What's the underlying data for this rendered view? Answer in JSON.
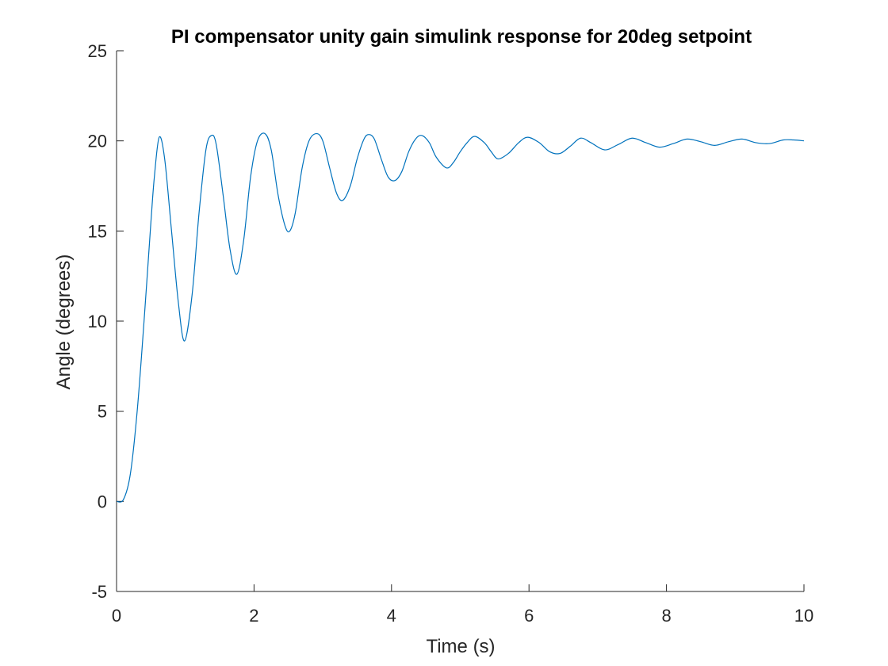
{
  "chart_data": {
    "type": "line",
    "title": "PI compensator unity gain simulink response for 20deg setpoint",
    "xlabel": "Time (s)",
    "ylabel": "Angle (degrees)",
    "xlim": [
      0,
      10
    ],
    "ylim": [
      -5,
      25
    ],
    "xticks": [
      0,
      2,
      4,
      6,
      8,
      10
    ],
    "yticks": [
      -5,
      0,
      5,
      10,
      15,
      20,
      25
    ],
    "xtick_labels": [
      "0",
      "2",
      "4",
      "6",
      "8",
      "10"
    ],
    "ytick_labels": [
      "-5",
      "0",
      "5",
      "10",
      "15",
      "20",
      "25"
    ],
    "grid": false,
    "legend": "none",
    "line_color": "#0072BD",
    "axis_color": "#262626",
    "series": [
      {
        "x": [
          0,
          0.1,
          0.2,
          0.3,
          0.4,
          0.5,
          0.55,
          0.62,
          0.7,
          0.8,
          0.9,
          0.99,
          1.1,
          1.2,
          1.3,
          1.38,
          1.45,
          1.55,
          1.65,
          1.75,
          1.85,
          1.95,
          2.05,
          2.16,
          2.25,
          2.35,
          2.45,
          2.52,
          2.6,
          2.7,
          2.8,
          2.91,
          3.0,
          3.1,
          3.2,
          3.29,
          3.4,
          3.5,
          3.6,
          3.67,
          3.75,
          3.85,
          3.95,
          4.05,
          4.15,
          4.25,
          4.35,
          4.44,
          4.55,
          4.65,
          4.8,
          4.9,
          5.0,
          5.1,
          5.21,
          5.35,
          5.45,
          5.55,
          5.7,
          5.85,
          5.98,
          6.15,
          6.3,
          6.45,
          6.6,
          6.75,
          6.9,
          7.1,
          7.3,
          7.5,
          7.7,
          7.9,
          8.1,
          8.3,
          8.5,
          8.7,
          8.9,
          9.1,
          9.3,
          9.5,
          9.7,
          9.85,
          10.0
        ],
        "y": [
          0,
          0.1,
          1.5,
          5.0,
          10.0,
          15.5,
          18.0,
          20.2,
          19.0,
          15.0,
          11.0,
          8.9,
          11.5,
          16.0,
          19.5,
          20.3,
          19.8,
          17.0,
          14.0,
          12.6,
          14.5,
          18.0,
          20.0,
          20.4,
          19.5,
          17.0,
          15.3,
          15.0,
          16.0,
          18.5,
          20.0,
          20.4,
          20.0,
          18.5,
          17.1,
          16.7,
          17.5,
          19.0,
          20.1,
          20.35,
          20.1,
          19.0,
          18.0,
          17.8,
          18.3,
          19.4,
          20.1,
          20.3,
          19.9,
          19.1,
          18.5,
          18.8,
          19.4,
          19.9,
          20.25,
          19.9,
          19.4,
          19.0,
          19.3,
          19.9,
          20.2,
          19.9,
          19.4,
          19.3,
          19.7,
          20.15,
          19.9,
          19.5,
          19.8,
          20.15,
          19.9,
          19.65,
          19.85,
          20.1,
          19.95,
          19.75,
          19.95,
          20.1,
          19.9,
          19.85,
          20.05,
          20.05,
          20.0
        ]
      }
    ]
  }
}
